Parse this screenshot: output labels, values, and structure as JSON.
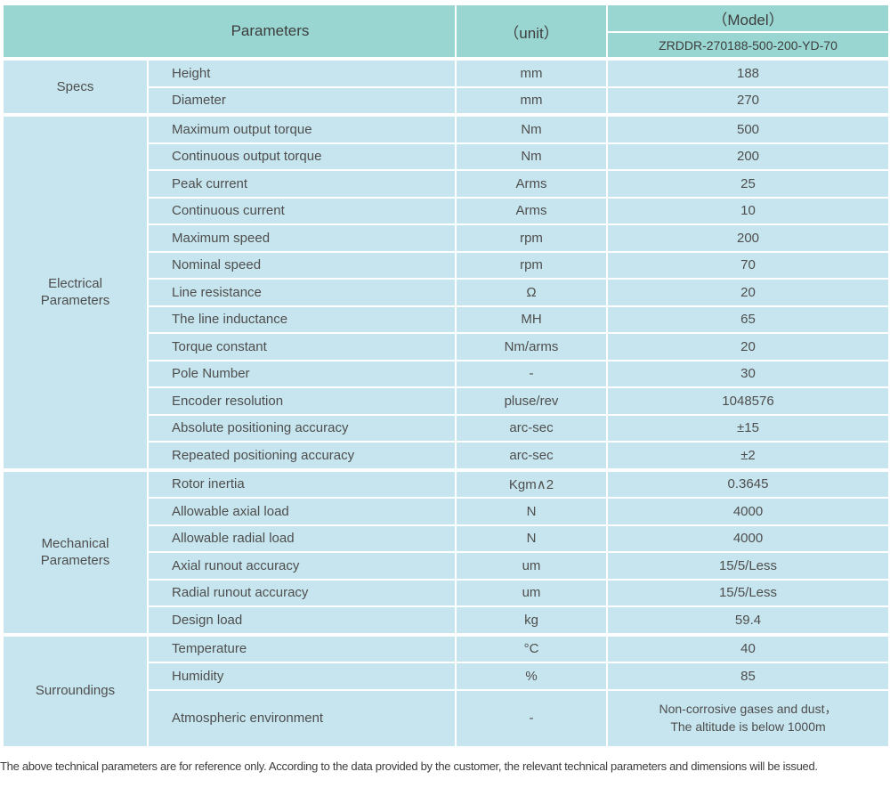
{
  "colors": {
    "header_bg": "#99d6d1",
    "row_bg": "#c7e5ee",
    "text": "#4e4e4e"
  },
  "header": {
    "parameters_label": "Parameters",
    "unit_label": "（unit）",
    "model_label": "（Model）",
    "model_value": "ZRDDR-270188-500-200-YD-70"
  },
  "sections": [
    {
      "group": "Specs",
      "rows": [
        {
          "param": "Height",
          "unit": "mm",
          "value": "188"
        },
        {
          "param": "Diameter",
          "unit": "mm",
          "value": "270"
        }
      ]
    },
    {
      "group": "Electrical\nParameters",
      "rows": [
        {
          "param": "Maximum output torque",
          "unit": "Nm",
          "value": "500"
        },
        {
          "param": "Continuous output torque",
          "unit": "Nm",
          "value": "200"
        },
        {
          "param": "Peak current",
          "unit": "Arms",
          "value": "25"
        },
        {
          "param": "Continuous current",
          "unit": "Arms",
          "value": "10"
        },
        {
          "param": "Maximum speed",
          "unit": "rpm",
          "value": "200"
        },
        {
          "param": "Nominal speed",
          "unit": "rpm",
          "value": "70"
        },
        {
          "param": "Line resistance",
          "unit": "Ω",
          "value": "20"
        },
        {
          "param": "The line inductance",
          "unit": "MH",
          "value": "65"
        },
        {
          "param": "Torque constant",
          "unit": "Nm/arms",
          "value": "20"
        },
        {
          "param": "Pole Number",
          "unit": "-",
          "value": "30"
        },
        {
          "param": "Encoder resolution",
          "unit": "pluse/rev",
          "value": "1048576"
        },
        {
          "param": "Absolute positioning accuracy",
          "unit": "arc-sec",
          "value": "±15"
        },
        {
          "param": "Repeated positioning accuracy",
          "unit": "arc-sec",
          "value": "±2"
        }
      ]
    },
    {
      "group": "Mechanical\nParameters",
      "rows": [
        {
          "param": "Rotor inertia",
          "unit": "Kgm∧2",
          "value": "0.3645"
        },
        {
          "param": "Allowable axial load",
          "unit": "N",
          "value": "4000"
        },
        {
          "param": "Allowable radial load",
          "unit": "N",
          "value": "4000"
        },
        {
          "param": "Axial runout accuracy",
          "unit": "um",
          "value": "15/5/Less"
        },
        {
          "param": "Radial runout accuracy",
          "unit": "um",
          "value": "15/5/Less"
        },
        {
          "param": "Design load",
          "unit": "kg",
          "value": "59.4"
        }
      ]
    },
    {
      "group": "Surroundings",
      "rows": [
        {
          "param": "Temperature",
          "unit": "°C",
          "value": "40"
        },
        {
          "param": "Humidity",
          "unit": "%",
          "value": "85"
        },
        {
          "param": "Atmospheric environment",
          "unit": "-",
          "value": "Non-corrosive gases and dust，\nThe altitude is below 1000m",
          "tall": true
        }
      ]
    }
  ],
  "footer": {
    "note": "The above technical parameters are for reference only. According to the data provided by the customer, the relevant technical parameters and dimensions will be issued."
  }
}
